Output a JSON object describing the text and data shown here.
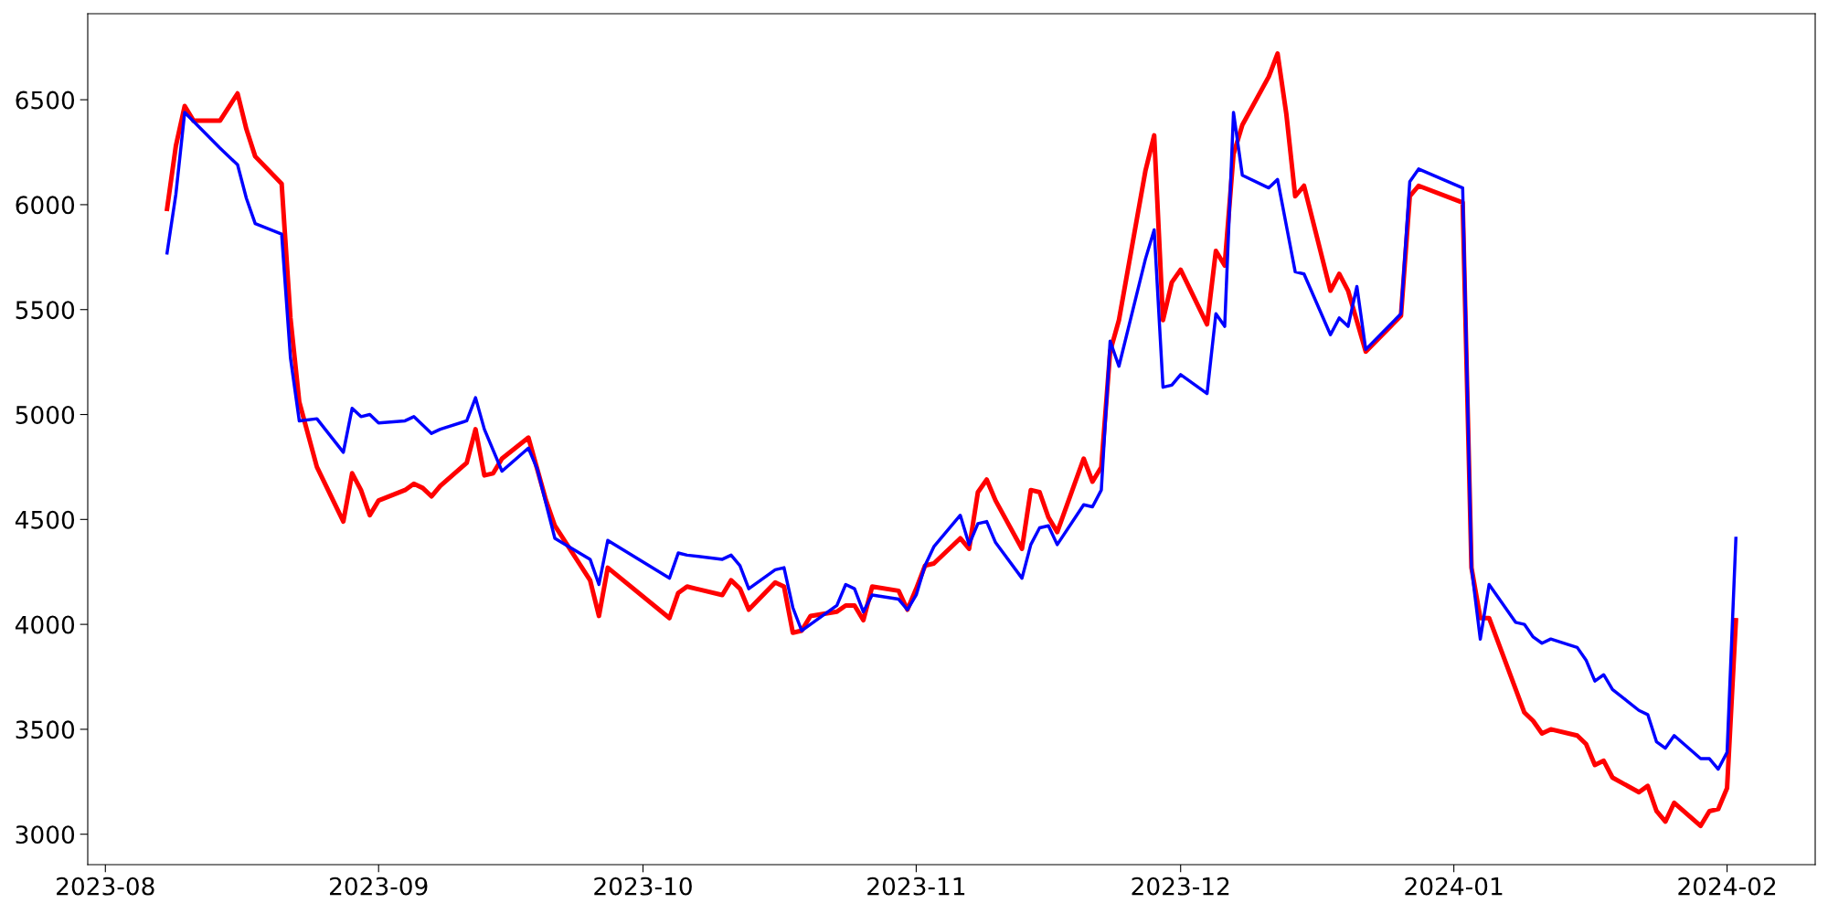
{
  "chart_data": {
    "type": "line",
    "xlim": [
      "2023-07-30",
      "2024-02-11"
    ],
    "ylim": [
      2855,
      6910
    ],
    "xticks": [
      {
        "value": "2023-08-01",
        "label": "2023-08"
      },
      {
        "value": "2023-09-01",
        "label": "2023-09"
      },
      {
        "value": "2023-10-01",
        "label": "2023-10"
      },
      {
        "value": "2023-11-01",
        "label": "2023-11"
      },
      {
        "value": "2023-12-01",
        "label": "2023-12"
      },
      {
        "value": "2024-01-01",
        "label": "2024-01"
      },
      {
        "value": "2024-02-01",
        "label": "2024-02"
      }
    ],
    "yticks": [
      3000,
      3500,
      4000,
      4500,
      5000,
      5500,
      6000,
      6500
    ],
    "grid": false,
    "legend": false,
    "marker": "none",
    "line_style": "solid",
    "series": [
      {
        "color": "#ff0000",
        "x": [
          "2023-08-08",
          "2023-08-09",
          "2023-08-10",
          "2023-08-11",
          "2023-08-14",
          "2023-08-16",
          "2023-08-17",
          "2023-08-18",
          "2023-08-21",
          "2023-08-22",
          "2023-08-23",
          "2023-08-25",
          "2023-08-28",
          "2023-08-29",
          "2023-08-30",
          "2023-08-31",
          "2023-09-01",
          "2023-09-04",
          "2023-09-05",
          "2023-09-06",
          "2023-09-07",
          "2023-09-08",
          "2023-09-11",
          "2023-09-12",
          "2023-09-13",
          "2023-09-14",
          "2023-09-15",
          "2023-09-18",
          "2023-09-19",
          "2023-09-20",
          "2023-09-21",
          "2023-09-25",
          "2023-09-26",
          "2023-09-27",
          "2023-10-04",
          "2023-10-05",
          "2023-10-06",
          "2023-10-10",
          "2023-10-11",
          "2023-10-12",
          "2023-10-13",
          "2023-10-16",
          "2023-10-17",
          "2023-10-18",
          "2023-10-19",
          "2023-10-20",
          "2023-10-23",
          "2023-10-24",
          "2023-10-25",
          "2023-10-26",
          "2023-10-27",
          "2023-10-30",
          "2023-10-31",
          "2023-11-01",
          "2023-11-02",
          "2023-11-03",
          "2023-11-06",
          "2023-11-07",
          "2023-11-08",
          "2023-11-09",
          "2023-11-10",
          "2023-11-13",
          "2023-11-14",
          "2023-11-15",
          "2023-11-16",
          "2023-11-17",
          "2023-11-20",
          "2023-11-21",
          "2023-11-22",
          "2023-11-23",
          "2023-11-24",
          "2023-11-27",
          "2023-11-28",
          "2023-11-29",
          "2023-11-30",
          "2023-12-01",
          "2023-12-04",
          "2023-12-05",
          "2023-12-06",
          "2023-12-07",
          "2023-12-08",
          "2023-12-11",
          "2023-12-12",
          "2023-12-13",
          "2023-12-14",
          "2023-12-15",
          "2023-12-18",
          "2023-12-19",
          "2023-12-20",
          "2023-12-22",
          "2023-12-26",
          "2023-12-27",
          "2023-12-28",
          "2024-01-02",
          "2024-01-03",
          "2024-01-04",
          "2024-01-05",
          "2024-01-09",
          "2024-01-10",
          "2024-01-11",
          "2024-01-12",
          "2024-01-15",
          "2024-01-16",
          "2024-01-17",
          "2024-01-18",
          "2024-01-19",
          "2024-01-22",
          "2024-01-23",
          "2024-01-24",
          "2024-01-25",
          "2024-01-26",
          "2024-01-29",
          "2024-01-30",
          "2024-01-31",
          "2024-02-01",
          "2024-02-02"
        ],
        "values": [
          5980,
          6280,
          6470,
          6400,
          6400,
          6530,
          6360,
          6230,
          6100,
          5460,
          5060,
          4750,
          4490,
          4720,
          4640,
          4520,
          4590,
          4640,
          4670,
          4650,
          4610,
          4660,
          4770,
          4930,
          4710,
          4720,
          4790,
          4890,
          4740,
          4590,
          4470,
          4210,
          4040,
          4270,
          4030,
          4150,
          4180,
          4140,
          4210,
          4170,
          4070,
          4200,
          4180,
          3960,
          3970,
          4040,
          4060,
          4090,
          4090,
          4020,
          4180,
          4160,
          4070,
          4170,
          4280,
          4290,
          4410,
          4360,
          4630,
          4690,
          4590,
          4360,
          4640,
          4630,
          4510,
          4440,
          4790,
          4680,
          4750,
          5300,
          5450,
          6160,
          6330,
          5450,
          5630,
          5690,
          5430,
          5780,
          5710,
          6240,
          6380,
          6610,
          6720,
          6430,
          6040,
          6090,
          5590,
          5670,
          5590,
          5300,
          5470,
          6040,
          6090,
          6010,
          4270,
          4030,
          4030,
          3580,
          3540,
          3480,
          3500,
          3470,
          3430,
          3330,
          3350,
          3270,
          3200,
          3230,
          3110,
          3060,
          3150,
          3040,
          3110,
          3120,
          3220,
          4020
        ]
      },
      {
        "color": "#0000ff",
        "x": [
          "2023-08-08",
          "2023-08-09",
          "2023-08-10",
          "2023-08-14",
          "2023-08-16",
          "2023-08-17",
          "2023-08-18",
          "2023-08-21",
          "2023-08-22",
          "2023-08-23",
          "2023-08-25",
          "2023-08-28",
          "2023-08-29",
          "2023-08-30",
          "2023-08-31",
          "2023-09-01",
          "2023-09-04",
          "2023-09-05",
          "2023-09-06",
          "2023-09-07",
          "2023-09-08",
          "2023-09-11",
          "2023-09-12",
          "2023-09-13",
          "2023-09-15",
          "2023-09-18",
          "2023-09-19",
          "2023-09-21",
          "2023-09-25",
          "2023-09-26",
          "2023-09-27",
          "2023-10-04",
          "2023-10-05",
          "2023-10-06",
          "2023-10-10",
          "2023-10-11",
          "2023-10-12",
          "2023-10-13",
          "2023-10-16",
          "2023-10-17",
          "2023-10-18",
          "2023-10-19",
          "2023-10-20",
          "2023-10-23",
          "2023-10-24",
          "2023-10-25",
          "2023-10-26",
          "2023-10-27",
          "2023-10-30",
          "2023-10-31",
          "2023-11-01",
          "2023-11-02",
          "2023-11-03",
          "2023-11-06",
          "2023-11-07",
          "2023-11-08",
          "2023-11-09",
          "2023-11-10",
          "2023-11-13",
          "2023-11-14",
          "2023-11-15",
          "2023-11-16",
          "2023-11-17",
          "2023-11-20",
          "2023-11-21",
          "2023-11-22",
          "2023-11-23",
          "2023-11-24",
          "2023-11-27",
          "2023-11-28",
          "2023-11-29",
          "2023-11-30",
          "2023-12-01",
          "2023-12-04",
          "2023-12-05",
          "2023-12-06",
          "2023-12-07",
          "2023-12-08",
          "2023-12-11",
          "2023-12-12",
          "2023-12-14",
          "2023-12-15",
          "2023-12-18",
          "2023-12-19",
          "2023-12-20",
          "2023-12-21",
          "2023-12-22",
          "2023-12-26",
          "2023-12-27",
          "2023-12-28",
          "2024-01-02",
          "2024-01-03",
          "2024-01-04",
          "2024-01-05",
          "2024-01-08",
          "2024-01-09",
          "2024-01-10",
          "2024-01-11",
          "2024-01-12",
          "2024-01-15",
          "2024-01-16",
          "2024-01-17",
          "2024-01-18",
          "2024-01-19",
          "2024-01-22",
          "2024-01-23",
          "2024-01-24",
          "2024-01-25",
          "2024-01-26",
          "2024-01-29",
          "2024-01-30",
          "2024-01-31",
          "2024-02-01",
          "2024-02-02"
        ],
        "values": [
          5770,
          6050,
          6440,
          6270,
          6190,
          6030,
          5910,
          5860,
          5270,
          4970,
          4980,
          4820,
          5030,
          4990,
          5000,
          4960,
          4970,
          4990,
          4950,
          4910,
          4930,
          4970,
          5080,
          4930,
          4730,
          4840,
          4740,
          4410,
          4310,
          4190,
          4400,
          4220,
          4340,
          4330,
          4310,
          4330,
          4280,
          4170,
          4260,
          4270,
          4080,
          3970,
          4000,
          4090,
          4190,
          4170,
          4060,
          4140,
          4120,
          4070,
          4140,
          4280,
          4370,
          4520,
          4380,
          4480,
          4490,
          4390,
          4220,
          4380,
          4460,
          4470,
          4380,
          4570,
          4560,
          4640,
          5350,
          5230,
          5740,
          5880,
          5130,
          5140,
          5190,
          5100,
          5480,
          5420,
          6440,
          6140,
          6080,
          6120,
          5680,
          5670,
          5380,
          5460,
          5420,
          5610,
          5310,
          5480,
          6110,
          6170,
          6080,
          4270,
          3930,
          4190,
          4010,
          4000,
          3940,
          3910,
          3930,
          3890,
          3830,
          3730,
          3760,
          3690,
          3590,
          3570,
          3440,
          3410,
          3470,
          3360,
          3360,
          3310,
          3390,
          4410
        ]
      }
    ]
  }
}
